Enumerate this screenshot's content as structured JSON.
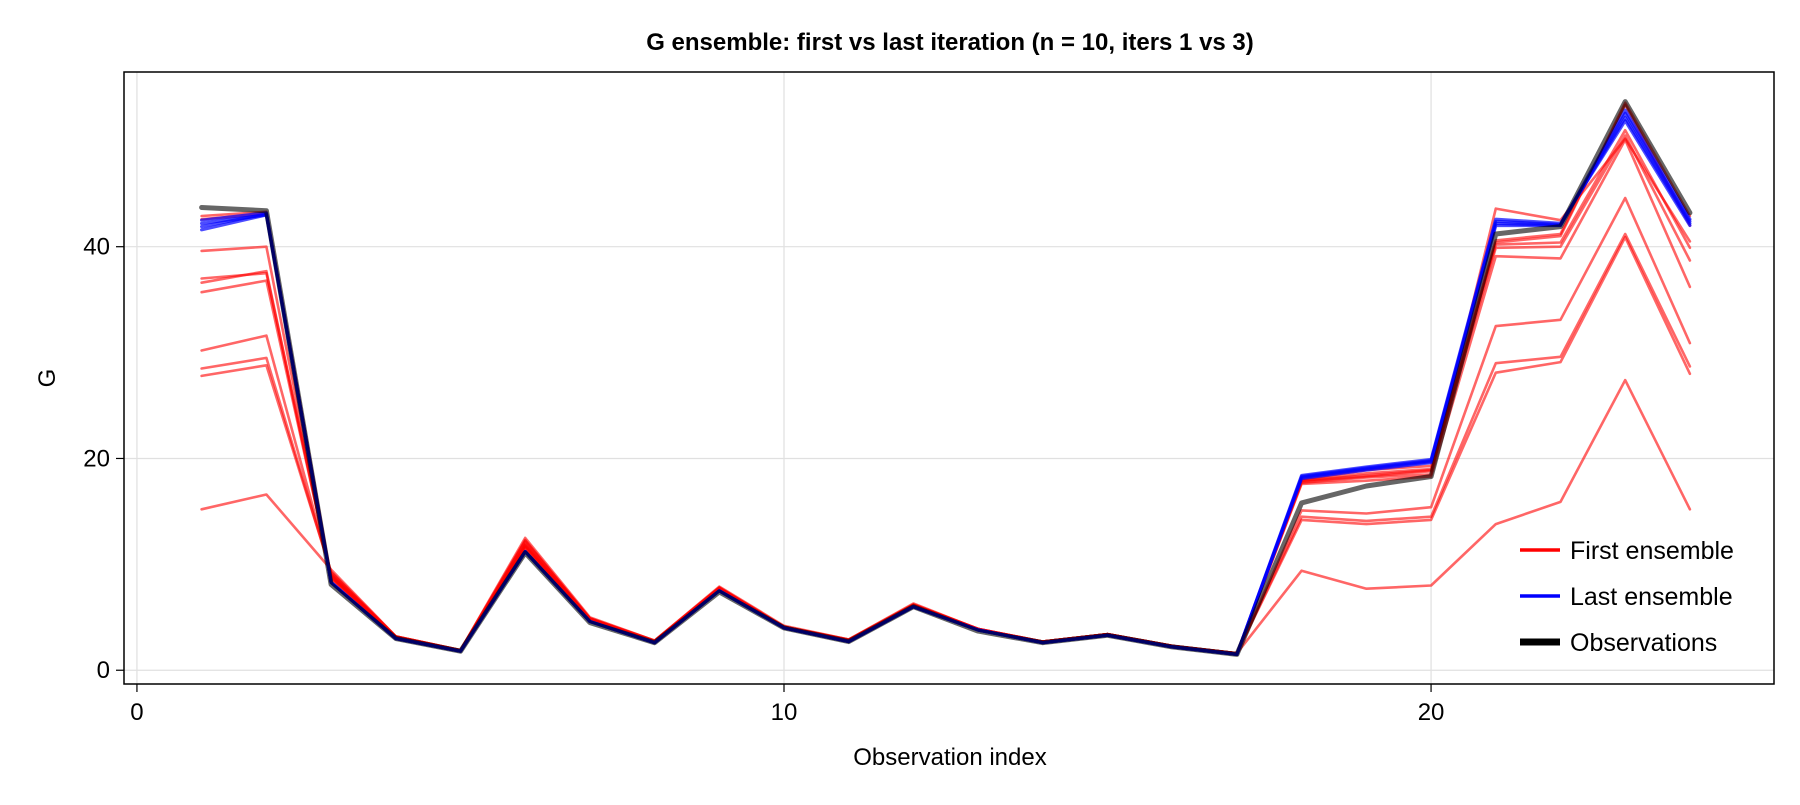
{
  "chart_data": {
    "type": "line",
    "title": "G ensemble: first vs last iteration (n = 10, iters 1 vs 3)",
    "xlabel": "Observation index",
    "ylabel": "G",
    "xlim": [
      -0.2,
      25.3
    ],
    "ylim": [
      -1.3,
      56.5
    ],
    "xticks": [
      0,
      10,
      20
    ],
    "yticks": [
      0,
      20,
      40
    ],
    "grid": true,
    "legend_position": "bottom-right",
    "x": [
      1,
      2,
      3,
      4,
      5,
      6,
      7,
      8,
      9,
      10,
      11,
      12,
      13,
      14,
      15,
      16,
      17,
      18,
      19,
      20,
      21,
      22,
      23,
      24
    ],
    "colors": {
      "first": "#ff0000",
      "last": "#0000ff",
      "observations": "#000000"
    },
    "legend": [
      {
        "label": "First ensemble",
        "color": "#ff0000"
      },
      {
        "label": "Last ensemble",
        "color": "#0000ff"
      },
      {
        "label": "Observations",
        "color": "#000000"
      }
    ],
    "series": [
      {
        "group": "first",
        "values": [
          15.2,
          16.6,
          9.5,
          3.2,
          1.9,
          12.5,
          5.0,
          2.8,
          7.9,
          4.2,
          2.9,
          6.3,
          3.9,
          2.7,
          3.4,
          2.3,
          1.6,
          9.4,
          7.7,
          8.0,
          13.8,
          15.9,
          27.4,
          15.2
        ]
      },
      {
        "group": "first",
        "values": [
          27.8,
          28.8,
          9.3,
          3.2,
          1.9,
          12.3,
          4.9,
          2.8,
          7.8,
          4.1,
          2.9,
          6.2,
          3.9,
          2.7,
          3.4,
          2.3,
          1.6,
          14.2,
          13.8,
          14.2,
          28.1,
          29.1,
          40.9,
          28.0
        ]
      },
      {
        "group": "first",
        "values": [
          28.5,
          29.5,
          9.2,
          3.2,
          1.9,
          12.2,
          4.9,
          2.8,
          7.8,
          4.1,
          2.9,
          6.2,
          3.9,
          2.7,
          3.4,
          2.3,
          1.6,
          14.5,
          14.1,
          14.5,
          29.0,
          29.6,
          41.2,
          28.7
        ]
      },
      {
        "group": "first",
        "values": [
          30.2,
          31.6,
          9.1,
          3.2,
          1.9,
          12.1,
          4.9,
          2.7,
          7.8,
          4.1,
          2.8,
          6.2,
          3.9,
          2.7,
          3.4,
          2.3,
          1.6,
          15.1,
          14.8,
          15.4,
          32.5,
          33.1,
          44.6,
          30.9
        ]
      },
      {
        "group": "first",
        "values": [
          35.7,
          36.8,
          9.0,
          3.1,
          1.8,
          11.9,
          4.8,
          2.7,
          7.7,
          4.1,
          2.8,
          6.2,
          3.9,
          2.7,
          3.4,
          2.3,
          1.6,
          17.6,
          17.9,
          18.3,
          39.1,
          38.9,
          50.1,
          36.2
        ]
      },
      {
        "group": "first",
        "values": [
          36.6,
          37.7,
          8.9,
          3.1,
          1.8,
          11.8,
          4.8,
          2.7,
          7.7,
          4.1,
          2.8,
          6.1,
          3.8,
          2.7,
          3.4,
          2.3,
          1.6,
          17.8,
          18.3,
          18.8,
          39.9,
          40.0,
          50.5,
          38.7
        ]
      },
      {
        "group": "first",
        "values": [
          37.0,
          37.5,
          8.9,
          3.1,
          1.8,
          11.8,
          4.8,
          2.7,
          7.7,
          4.1,
          2.8,
          6.1,
          3.8,
          2.7,
          3.4,
          2.3,
          1.6,
          17.9,
          18.6,
          19.0,
          40.2,
          40.4,
          51.0,
          39.9
        ]
      },
      {
        "group": "first",
        "values": [
          39.6,
          40.0,
          8.8,
          3.1,
          1.8,
          11.7,
          4.8,
          2.7,
          7.7,
          4.1,
          2.8,
          6.1,
          3.8,
          2.7,
          3.4,
          2.3,
          1.6,
          17.7,
          18.2,
          18.5,
          43.6,
          42.5,
          50.2,
          40.5
        ]
      },
      {
        "group": "first",
        "values": [
          42.6,
          43.1,
          8.7,
          3.1,
          1.8,
          11.6,
          4.7,
          2.7,
          7.6,
          4.1,
          2.8,
          6.1,
          3.8,
          2.7,
          3.4,
          2.3,
          1.6,
          18.0,
          18.9,
          19.3,
          40.6,
          41.2,
          53.4,
          42.0
        ]
      },
      {
        "group": "first",
        "values": [
          42.9,
          43.3,
          8.6,
          3.0,
          1.8,
          11.5,
          4.7,
          2.7,
          7.6,
          4.1,
          2.8,
          6.1,
          3.8,
          2.7,
          3.4,
          2.3,
          1.6,
          17.9,
          18.4,
          18.9,
          40.4,
          41.0,
          53.6,
          42.9
        ]
      },
      {
        "group": "last",
        "values": [
          41.6,
          43.0,
          8.3,
          3.0,
          1.8,
          11.2,
          4.6,
          2.6,
          7.5,
          4.0,
          2.7,
          6.0,
          3.8,
          2.6,
          3.3,
          2.2,
          1.5,
          18.4,
          19.2,
          19.9,
          42.6,
          42.2,
          51.9,
          42.0
        ]
      },
      {
        "group": "last",
        "values": [
          41.9,
          43.1,
          8.3,
          3.0,
          1.8,
          11.2,
          4.6,
          2.6,
          7.5,
          4.0,
          2.7,
          6.0,
          3.8,
          2.6,
          3.3,
          2.2,
          1.5,
          18.3,
          19.1,
          19.8,
          42.4,
          42.1,
          52.2,
          42.2
        ]
      },
      {
        "group": "last",
        "values": [
          42.2,
          43.0,
          8.3,
          3.0,
          1.8,
          11.2,
          4.6,
          2.6,
          7.5,
          4.0,
          2.7,
          6.0,
          3.8,
          2.6,
          3.3,
          2.2,
          1.5,
          18.2,
          19.0,
          19.7,
          42.2,
          42.0,
          52.6,
          42.4
        ]
      },
      {
        "group": "last",
        "values": [
          42.5,
          43.2,
          8.3,
          3.0,
          1.8,
          11.2,
          4.6,
          2.6,
          7.5,
          4.0,
          2.7,
          6.0,
          3.8,
          2.6,
          3.3,
          2.2,
          1.5,
          18.1,
          18.9,
          19.6,
          42.0,
          42.0,
          52.9,
          42.6
        ]
      },
      {
        "group": "observations",
        "values": [
          43.7,
          43.4,
          8.1,
          3.0,
          1.8,
          11.1,
          4.5,
          2.6,
          7.4,
          4.0,
          2.7,
          6.0,
          3.7,
          2.6,
          3.3,
          2.2,
          1.5,
          15.8,
          17.4,
          18.3,
          41.2,
          41.9,
          53.7,
          43.2
        ]
      }
    ]
  }
}
